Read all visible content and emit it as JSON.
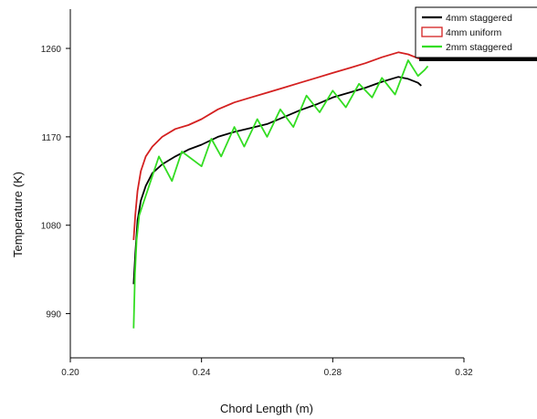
{
  "chart_data": {
    "type": "line",
    "title": "",
    "xlabel": "Chord Length (m)",
    "ylabel": "Temperature (K)",
    "xlim": [
      0.2,
      0.32
    ],
    "ylim": [
      945,
      1300
    ],
    "x_ticks": [
      {
        "value": 0.2,
        "label": "0.20"
      },
      {
        "value": 0.24,
        "label": "0.24"
      },
      {
        "value": 0.28,
        "label": "0.28"
      },
      {
        "value": 0.32,
        "label": "0.32"
      }
    ],
    "y_ticks": [
      {
        "value": 990,
        "label": "990"
      },
      {
        "value": 1080,
        "label": "1080"
      },
      {
        "value": 1170,
        "label": "1170"
      },
      {
        "value": 1260,
        "label": "1260"
      }
    ],
    "grid": false,
    "legend_position": "top-right",
    "series": [
      {
        "name": "4mm staggered",
        "color": "#000000",
        "x": [
          0.2193,
          0.2198,
          0.2205,
          0.2215,
          0.223,
          0.225,
          0.228,
          0.232,
          0.236,
          0.24,
          0.245,
          0.25,
          0.255,
          0.26,
          0.265,
          0.27,
          0.275,
          0.28,
          0.285,
          0.29,
          0.295,
          0.3,
          0.303,
          0.306,
          0.307
        ],
        "y": [
          1020,
          1050,
          1085,
          1105,
          1120,
          1133,
          1142,
          1150,
          1157,
          1162,
          1170,
          1175,
          1179,
          1183,
          1190,
          1197,
          1203,
          1210,
          1215,
          1220,
          1226,
          1231,
          1229,
          1225,
          1222
        ]
      },
      {
        "name": "4mm uniform",
        "color": "#d42020",
        "x": [
          0.2193,
          0.2198,
          0.2205,
          0.2215,
          0.223,
          0.225,
          0.228,
          0.232,
          0.236,
          0.24,
          0.245,
          0.25,
          0.255,
          0.26,
          0.265,
          0.27,
          0.275,
          0.28,
          0.285,
          0.29,
          0.295,
          0.3,
          0.303,
          0.306,
          0.307
        ],
        "y": [
          1065,
          1090,
          1115,
          1135,
          1150,
          1160,
          1170,
          1178,
          1182,
          1188,
          1198,
          1205,
          1210,
          1215,
          1220,
          1225,
          1230,
          1235,
          1240,
          1245,
          1251,
          1256,
          1254,
          1250,
          1249
        ]
      },
      {
        "name": "2mm staggered",
        "color": "#33dd22",
        "x": [
          0.2193,
          0.2197,
          0.2202,
          0.221,
          0.222,
          0.224,
          0.227,
          0.231,
          0.234,
          0.24,
          0.243,
          0.246,
          0.25,
          0.253,
          0.257,
          0.26,
          0.264,
          0.268,
          0.272,
          0.276,
          0.28,
          0.284,
          0.288,
          0.292,
          0.295,
          0.299,
          0.303,
          0.306,
          0.308,
          0.309
        ],
        "y": [
          975,
          1030,
          1065,
          1090,
          1100,
          1120,
          1150,
          1125,
          1155,
          1140,
          1168,
          1150,
          1180,
          1160,
          1188,
          1170,
          1198,
          1180,
          1212,
          1195,
          1217,
          1200,
          1224,
          1210,
          1230,
          1213,
          1248,
          1232,
          1238,
          1242
        ]
      }
    ]
  }
}
